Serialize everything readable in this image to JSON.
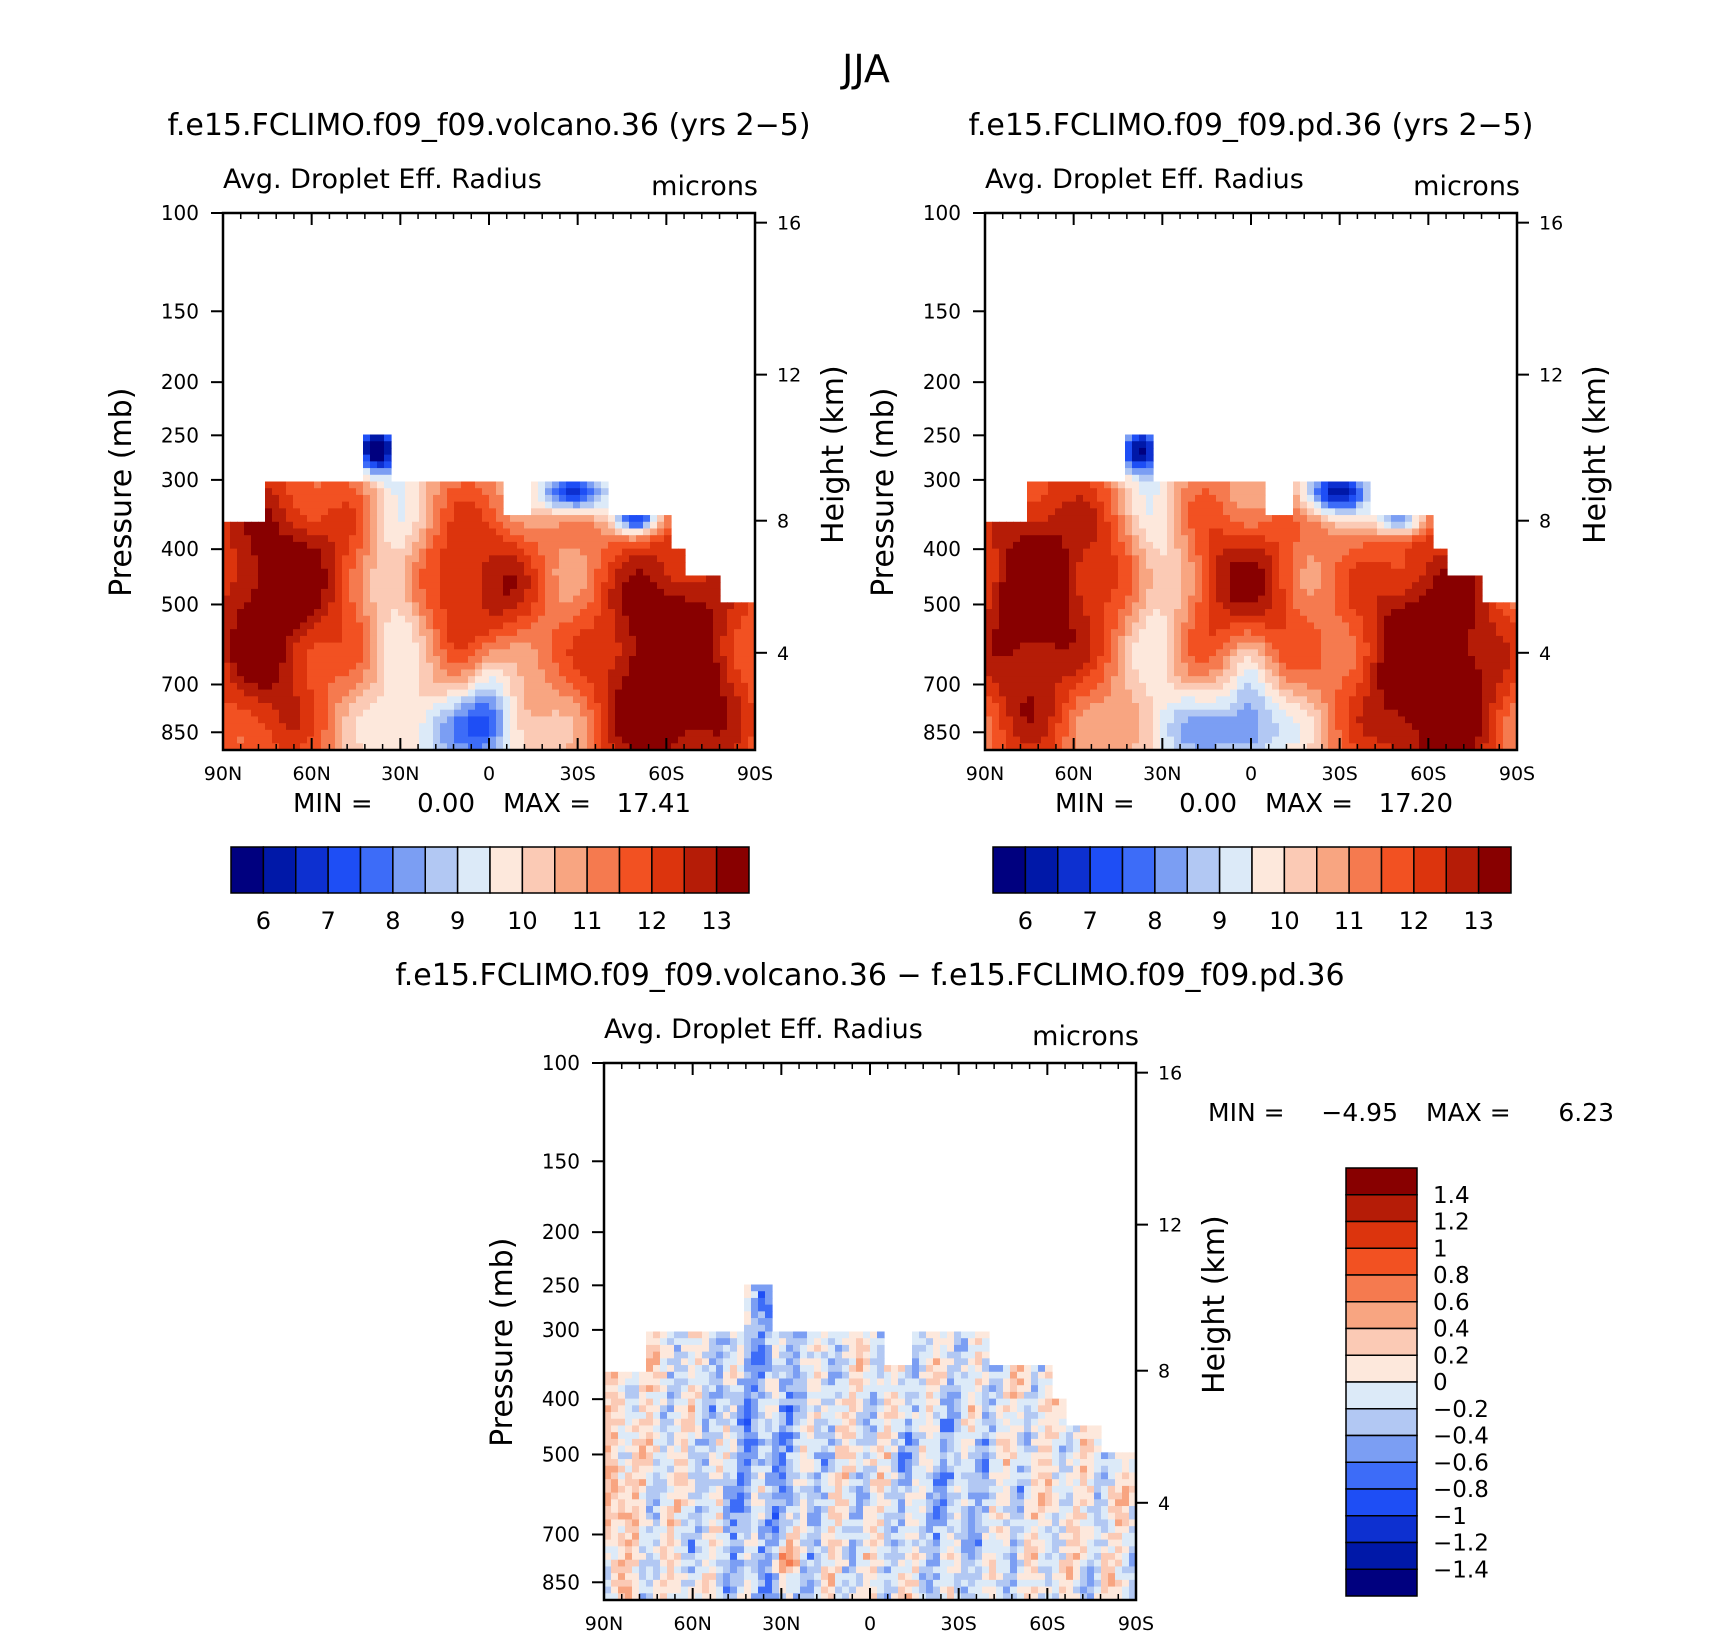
{
  "figure": {
    "title": "JJA"
  },
  "colors": {
    "abs_palette": [
      "#00007f",
      "#0018a8",
      "#0d30d0",
      "#1e4ef5",
      "#3d6cf8",
      "#7b9ef3",
      "#b2c8f3",
      "#dceaf8",
      "#fde8dc",
      "#fbcab5",
      "#f8a581",
      "#f57a4f",
      "#f25122",
      "#dc340d",
      "#b51c07",
      "#880000"
    ],
    "diff_palette": [
      "#00007f",
      "#0018a8",
      "#0d30d0",
      "#1e4ef5",
      "#3d6cf8",
      "#7b9ef3",
      "#b2c8f3",
      "#dceaf8",
      "#fde8dc",
      "#fbcab5",
      "#f8a581",
      "#f57a4f",
      "#f25122",
      "#dc340d",
      "#b51c07",
      "#880000"
    ]
  },
  "chart_data": [
    {
      "type": "heatmap",
      "title": "f.e15.FCLIMO.f09_f09.volcano.36 (yrs 2−5)",
      "subtitle_left": "Avg. Droplet Eff. Radius",
      "subtitle_right": "microns",
      "ylabel": "Pressure (mb)",
      "ylabel_right": "Height (km)",
      "x_ticks": [
        "90N",
        "60N",
        "30N",
        "0",
        "30S",
        "60S",
        "90S"
      ],
      "y_ticks": [
        "100",
        "150",
        "200",
        "250",
        "300",
        "400",
        "500",
        "700",
        "850"
      ],
      "y_ticks_right": [
        "16",
        "12",
        "8",
        "4"
      ],
      "stats": {
        "min_label": "MIN =",
        "min": "0.00",
        "max_label": "MAX =",
        "max": "17.41"
      },
      "colorbar_labels": [
        "6",
        "7",
        "8",
        "9",
        "10",
        "11",
        "12",
        "13"
      ]
    },
    {
      "type": "heatmap",
      "title": "f.e15.FCLIMO.f09_f09.pd.36 (yrs 2−5)",
      "subtitle_left": "Avg. Droplet Eff. Radius",
      "subtitle_right": "microns",
      "ylabel": "Pressure (mb)",
      "ylabel_right": "Height (km)",
      "x_ticks": [
        "90N",
        "60N",
        "30N",
        "0",
        "30S",
        "60S",
        "90S"
      ],
      "y_ticks": [
        "100",
        "150",
        "200",
        "250",
        "300",
        "400",
        "500",
        "700",
        "850"
      ],
      "y_ticks_right": [
        "16",
        "12",
        "8",
        "4"
      ],
      "stats": {
        "min_label": "MIN =",
        "min": "0.00",
        "max_label": "MAX =",
        "max": "17.20"
      },
      "colorbar_labels": [
        "6",
        "7",
        "8",
        "9",
        "10",
        "11",
        "12",
        "13"
      ]
    },
    {
      "type": "heatmap",
      "title": "f.e15.FCLIMO.f09_f09.volcano.36 − f.e15.FCLIMO.f09_f09.pd.36",
      "subtitle_left": "Avg. Droplet Eff. Radius",
      "subtitle_right": "microns",
      "ylabel": "Pressure (mb)",
      "ylabel_right": "Height (km)",
      "x_ticks": [
        "90N",
        "60N",
        "30N",
        "0",
        "30S",
        "60S",
        "90S"
      ],
      "y_ticks": [
        "100",
        "150",
        "200",
        "250",
        "300",
        "400",
        "500",
        "700",
        "850"
      ],
      "y_ticks_right": [
        "16",
        "12",
        "8",
        "4"
      ],
      "stats": {
        "min_label": "MIN =",
        "min": "−4.95",
        "max_label": "MAX =",
        "max": "6.23"
      },
      "colorbar_labels": [
        "1.4",
        "1.2",
        "1",
        "0.8",
        "0.6",
        "0.4",
        "0.2",
        "0",
        "−0.2",
        "−0.4",
        "−0.6",
        "−0.8",
        "−1",
        "−1.2",
        "−1.4"
      ]
    }
  ]
}
